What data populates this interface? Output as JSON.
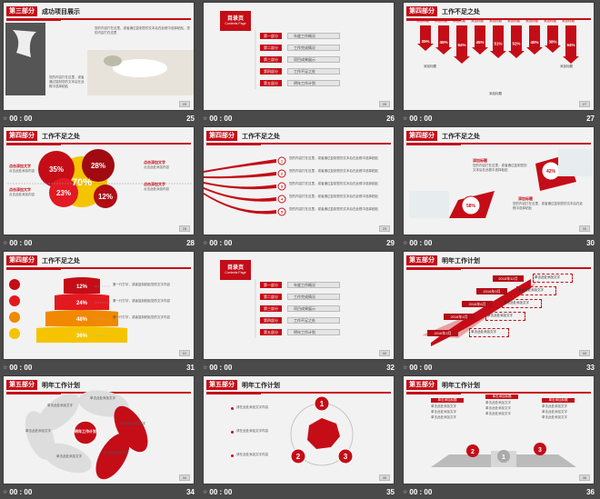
{
  "cells": [
    {
      "num": "25",
      "time": "00 : 00",
      "sec": "第三部分",
      "title": "成功项目展示",
      "para1": "您的内容打在这里，或者通过复制您的文本后在此框中选择粘贴，您的内容打在这里",
      "para2": "您的内容打在这里，或者通过复制您的文本后在此框中选择粘贴"
    },
    {
      "num": "26",
      "time": "00 : 00",
      "toc": "目录页",
      "toc_sub": "Contents Page",
      "parts": [
        "第一部分",
        "第二部分",
        "第三部分",
        "第四部分",
        "第五部分"
      ],
      "items": [
        "年度工作概况",
        "工作完成情况",
        "项目成果展示",
        "工作不足之处",
        "明年工作计划"
      ]
    },
    {
      "num": "27",
      "time": "00 : 00",
      "sec": "第四部分",
      "title": "工作不足之处",
      "label": "添加标题",
      "pcts": [
        "35%",
        "45%",
        "64%",
        "45%",
        "51%",
        "52%",
        "45%",
        "38%",
        "64%"
      ],
      "tags": [
        "添加标题",
        "添加标题",
        "添加标题"
      ]
    },
    {
      "num": "28",
      "time": "00 : 00",
      "sec": "第四部分",
      "title": "工作不足之处",
      "pcts": [
        "35%",
        "28%",
        "70%",
        "23%",
        "12%"
      ],
      "label": "点击添加文字",
      "text": "点击此处添加内容"
    },
    {
      "num": "29",
      "time": "00 : 00",
      "sec": "第四部分",
      "title": "工作不足之处",
      "nums": [
        "1",
        "2",
        "3",
        "4",
        "5"
      ],
      "text": "您的内容打在这里，或者通过复制您的文本后在此框中选择粘贴"
    },
    {
      "num": "30",
      "time": "00 : 00",
      "sec": "第四部分",
      "title": "工作不足之处",
      "label": "添加标题",
      "pcts": [
        "42%",
        "58%"
      ],
      "text": "您的内容打在这里，或者通过复制您的文本后在此框中选择粘贴"
    },
    {
      "num": "31",
      "time": "00 : 00",
      "sec": "第四部分",
      "title": "工作不足之处",
      "pcts": [
        "12%",
        "24%",
        "48%",
        "36%"
      ],
      "label": "添加标题",
      "text": "第一行打字，或者复制粘贴您的文字内容"
    },
    {
      "num": "32",
      "time": "00 : 00",
      "toc": "目录页",
      "toc_sub": "Contents Page",
      "parts": [
        "第一部分",
        "第二部分",
        "第三部分",
        "第四部分",
        "第五部分"
      ],
      "items": [
        "年度工作概况",
        "工作完成情况",
        "项目成果展示",
        "工作不足之处",
        "明年工作计划"
      ]
    },
    {
      "num": "33",
      "time": "00 : 00",
      "sec": "第五部分",
      "title": "明年工作计划",
      "dates": [
        "2016年12月",
        "2016年9月",
        "2016年6月",
        "2016年4月",
        "2016年3月"
      ],
      "text": "单击此处添加文字"
    },
    {
      "num": "34",
      "time": "00 : 00",
      "sec": "第五部分",
      "title": "明年工作计划",
      "center": "明年工作计划",
      "text": "单击此处添加文字"
    },
    {
      "num": "35",
      "time": "00 : 00",
      "sec": "第五部分",
      "title": "明年工作计划",
      "nums": [
        "1",
        "2",
        "3"
      ],
      "text": "请在此处添加文字内容"
    },
    {
      "num": "36",
      "time": "00 : 00",
      "sec": "第五部分",
      "title": "明年工作计划",
      "nums": [
        "2",
        "1",
        "3"
      ],
      "head": "单击添加标题",
      "text": "单击此处添加文字"
    }
  ]
}
